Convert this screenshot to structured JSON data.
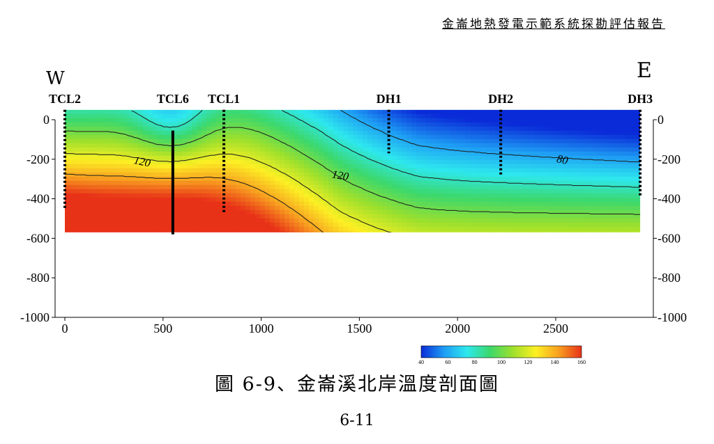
{
  "header": {
    "report_title": "金崙地熱發電示範系統探勘評估報告"
  },
  "directions": {
    "west": "W",
    "east": "E"
  },
  "caption": "圖 6-9、金崙溪北岸溫度剖面圖",
  "page_number": "6-11",
  "chart_data": {
    "type": "heatmap",
    "title": "",
    "xlabel": "",
    "ylabel": "",
    "xlim": [
      0,
      3000
    ],
    "ylim": [
      -1000,
      0
    ],
    "x_ticks": [
      0,
      500,
      1000,
      1500,
      2000,
      2500
    ],
    "y_ticks": [
      0,
      -200,
      -400,
      -600,
      -800,
      -1000
    ],
    "section_extent": {
      "x": [
        0,
        2930
      ],
      "depth": [
        -570,
        50
      ]
    },
    "wells": [
      {
        "name": "TCL2",
        "x": 0,
        "bottom": -450
      },
      {
        "name": "TCL6",
        "x": 550,
        "bottom": -580
      },
      {
        "name": "TCL1",
        "x": 810,
        "bottom": -470
      },
      {
        "name": "DH1",
        "x": 1650,
        "bottom": -170
      },
      {
        "name": "DH2",
        "x": 2220,
        "bottom": -280
      },
      {
        "name": "DH3",
        "x": 2930,
        "bottom": -390
      }
    ],
    "contour_labels": [
      {
        "text": "120",
        "x": 390,
        "y": -230
      },
      {
        "text": "120",
        "x": 1400,
        "y": -300
      },
      {
        "text": "80",
        "x": 2530,
        "y": -220
      }
    ],
    "colorbar": {
      "min": 40,
      "max": 160,
      "ticks": [
        40,
        60,
        80,
        100,
        120,
        140,
        160
      ],
      "colors": [
        "#0a2bd8",
        "#1e9cf4",
        "#2ee8ee",
        "#3cd86c",
        "#9ee02c",
        "#fcf024",
        "#f8a020",
        "#e83218"
      ]
    },
    "grid": false
  }
}
